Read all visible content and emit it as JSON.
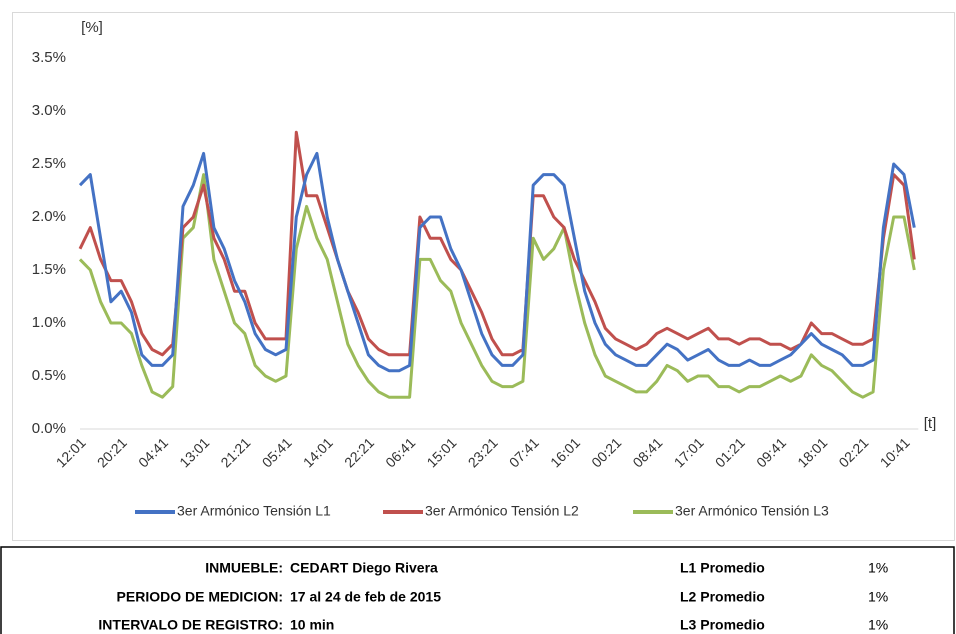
{
  "chart_data": {
    "type": "line",
    "y_label": "[%]",
    "x_label": "[t]",
    "categories": [
      "12:01",
      null,
      null,
      null,
      "20:21",
      null,
      null,
      null,
      "04:41",
      null,
      null,
      null,
      "13:01",
      null,
      null,
      null,
      "21:21",
      null,
      null,
      null,
      "05:41",
      null,
      null,
      null,
      "14:01",
      null,
      null,
      null,
      "22:21",
      null,
      null,
      null,
      "06:41",
      null,
      null,
      null,
      "15:01",
      null,
      null,
      null,
      "23:21",
      null,
      null,
      null,
      "07:41",
      null,
      null,
      null,
      "16:01",
      null,
      null,
      null,
      "00:21",
      null,
      null,
      null,
      "08:41",
      null,
      null,
      null,
      "17:01",
      null,
      null,
      null,
      "01:21",
      null,
      null,
      null,
      "09:41",
      null,
      null,
      null,
      "18:01",
      null,
      null,
      null,
      "02:21",
      null,
      null,
      null,
      "10:41",
      null
    ],
    "series": [
      {
        "name": "3er Armónico Tensión L1",
        "color": "#4472c4",
        "values": [
          2.3,
          2.4,
          1.8,
          1.2,
          1.3,
          1.1,
          0.7,
          0.6,
          0.6,
          0.7,
          2.1,
          2.3,
          2.6,
          1.9,
          1.7,
          1.4,
          1.2,
          0.9,
          0.75,
          0.7,
          0.75,
          2.0,
          2.4,
          2.6,
          2.0,
          1.6,
          1.3,
          1.0,
          0.7,
          0.6,
          0.55,
          0.55,
          0.6,
          1.9,
          2.0,
          2.0,
          1.7,
          1.5,
          1.2,
          0.9,
          0.7,
          0.6,
          0.6,
          0.7,
          2.3,
          2.4,
          2.4,
          2.3,
          1.8,
          1.3,
          1.0,
          0.8,
          0.7,
          0.65,
          0.6,
          0.6,
          0.7,
          0.8,
          0.75,
          0.65,
          0.7,
          0.75,
          0.65,
          0.6,
          0.6,
          0.65,
          0.6,
          0.6,
          0.65,
          0.7,
          0.8,
          0.9,
          0.8,
          0.75,
          0.7,
          0.6,
          0.6,
          0.65,
          1.9,
          2.5,
          2.4,
          1.9
        ]
      },
      {
        "name": "3er Armónico Tensión L2",
        "color": "#c0504d",
        "values": [
          1.7,
          1.9,
          1.6,
          1.4,
          1.4,
          1.2,
          0.9,
          0.75,
          0.7,
          0.8,
          1.9,
          2.0,
          2.3,
          1.8,
          1.6,
          1.3,
          1.3,
          1.0,
          0.85,
          0.85,
          0.85,
          2.8,
          2.2,
          2.2,
          1.9,
          1.6,
          1.3,
          1.1,
          0.85,
          0.75,
          0.7,
          0.7,
          0.7,
          2.0,
          1.8,
          1.8,
          1.6,
          1.5,
          1.3,
          1.1,
          0.85,
          0.7,
          0.7,
          0.75,
          2.2,
          2.2,
          2.0,
          1.9,
          1.6,
          1.4,
          1.2,
          0.95,
          0.85,
          0.8,
          0.75,
          0.8,
          0.9,
          0.95,
          0.9,
          0.85,
          0.9,
          0.95,
          0.85,
          0.85,
          0.8,
          0.85,
          0.85,
          0.8,
          0.8,
          0.75,
          0.8,
          1.0,
          0.9,
          0.9,
          0.85,
          0.8,
          0.8,
          0.85,
          1.8,
          2.4,
          2.3,
          1.6
        ]
      },
      {
        "name": "3er Armónico Tensión L3",
        "color": "#9bbb59",
        "values": [
          1.6,
          1.5,
          1.2,
          1.0,
          1.0,
          0.9,
          0.6,
          0.35,
          0.3,
          0.4,
          1.8,
          1.9,
          2.4,
          1.6,
          1.3,
          1.0,
          0.9,
          0.6,
          0.5,
          0.45,
          0.5,
          1.7,
          2.1,
          1.8,
          1.6,
          1.2,
          0.8,
          0.6,
          0.45,
          0.35,
          0.3,
          0.3,
          0.3,
          1.6,
          1.6,
          1.4,
          1.3,
          1.0,
          0.8,
          0.6,
          0.45,
          0.4,
          0.4,
          0.45,
          1.8,
          1.6,
          1.7,
          1.9,
          1.4,
          1.0,
          0.7,
          0.5,
          0.45,
          0.4,
          0.35,
          0.35,
          0.45,
          0.6,
          0.55,
          0.45,
          0.5,
          0.5,
          0.4,
          0.4,
          0.35,
          0.4,
          0.4,
          0.45,
          0.5,
          0.45,
          0.5,
          0.7,
          0.6,
          0.55,
          0.45,
          0.35,
          0.3,
          0.35,
          1.5,
          2.0,
          2.0,
          1.5
        ]
      }
    ],
    "ylim": [
      0,
      3.5
    ],
    "yticks": [
      {
        "value": 0,
        "label": "0.0%"
      },
      {
        "value": 0.5,
        "label": "0.5%"
      },
      {
        "value": 1,
        "label": "1.0%"
      },
      {
        "value": 1.5,
        "label": "1.5%"
      },
      {
        "value": 2,
        "label": "2.0%"
      },
      {
        "value": 2.5,
        "label": "2.5%"
      },
      {
        "value": 3,
        "label": "3.0%"
      },
      {
        "value": 3.5,
        "label": "3.5%"
      }
    ],
    "grid": false,
    "legend": "bottom"
  },
  "table": {
    "rows": [
      [
        "INMUEBLE:",
        "CEDART Diego Rivera",
        "L1 Promedio",
        "1%"
      ],
      [
        "PERIODO DE MEDICION:",
        "17 al 24 de feb de 2015",
        "L2 Promedio",
        "1%"
      ],
      [
        "INTERVALO DE REGISTRO:",
        "10 min",
        "L3 Promedio",
        "1%"
      ]
    ]
  }
}
